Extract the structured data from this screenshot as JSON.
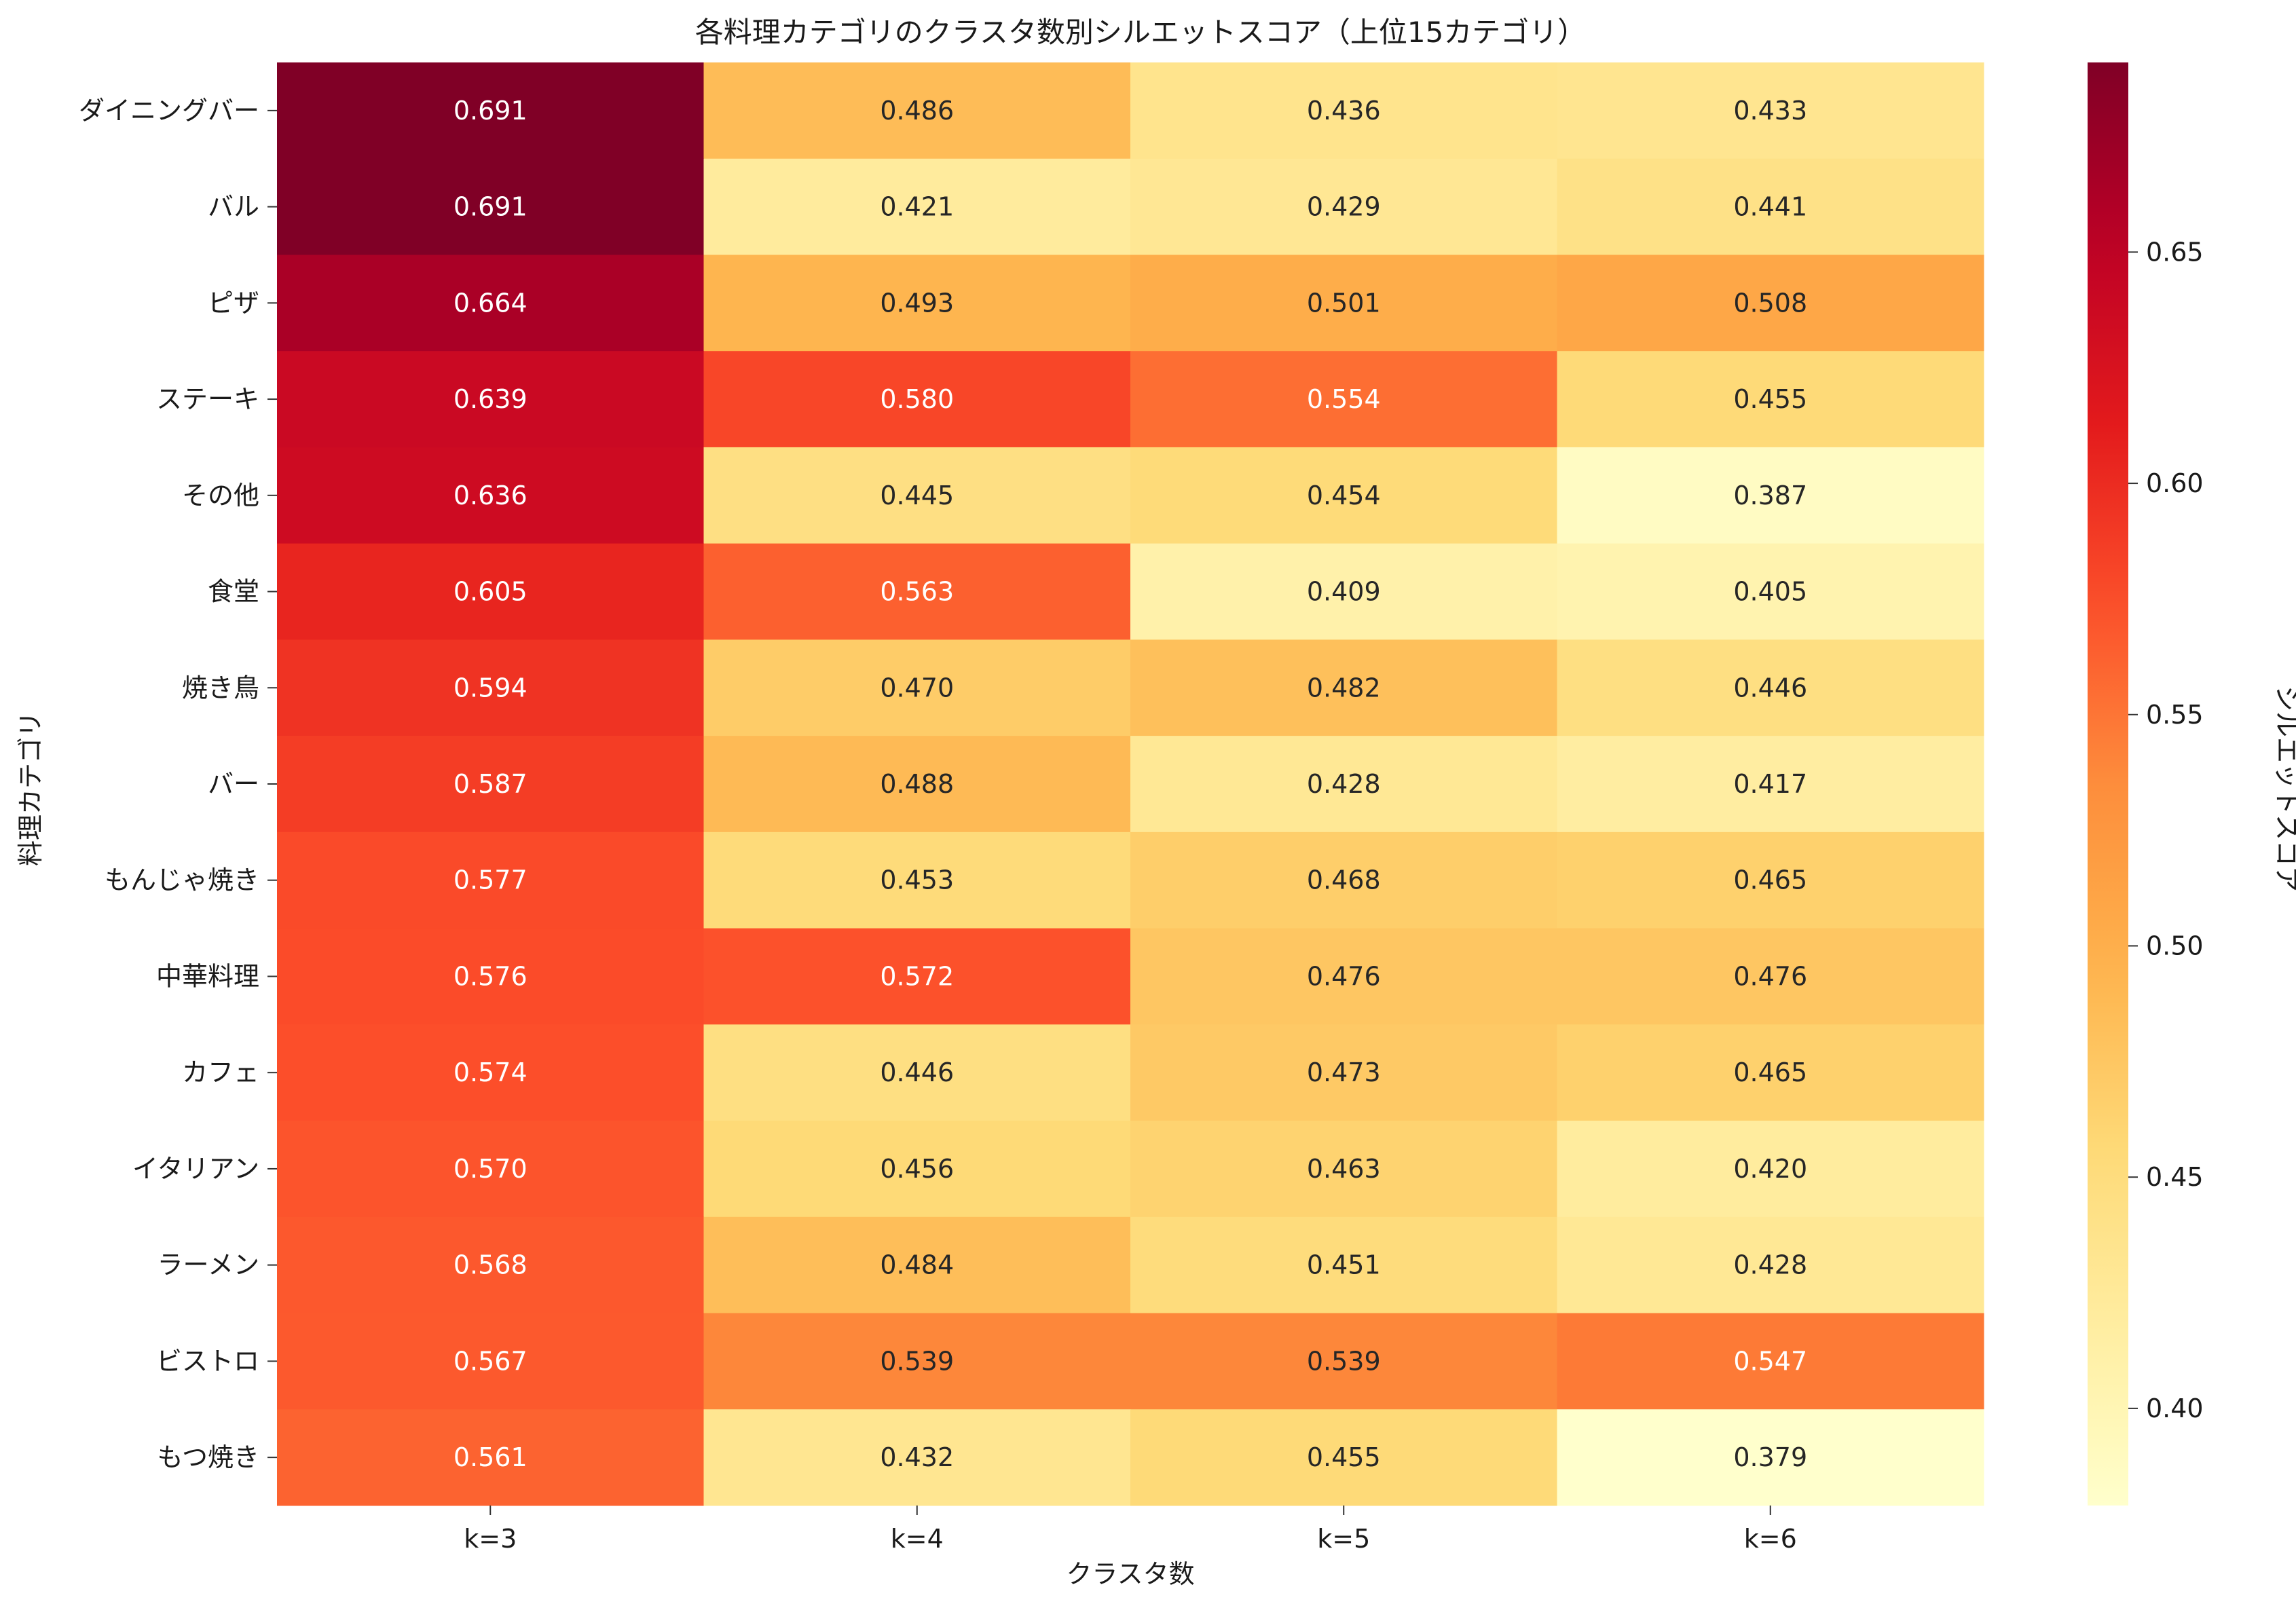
{
  "chart_data": {
    "type": "heatmap",
    "title": "各料理カテゴリのクラスタ数別シルエットスコア（上位15カテゴリ）",
    "xlabel": "クラスタ数",
    "ylabel": "料理カテゴリ",
    "colorbar_label": "シルエットスコア",
    "colormap": "YlOrRd",
    "x_categories": [
      "k=3",
      "k=4",
      "k=5",
      "k=6"
    ],
    "y_categories": [
      "ダイニングバー",
      "バル",
      "ピザ",
      "ステーキ",
      "その他",
      "食堂",
      "焼き鳥",
      "バー",
      "もんじゃ焼き",
      "中華料理",
      "カフェ",
      "イタリアン",
      "ラーメン",
      "ビストロ",
      "もつ焼き"
    ],
    "values": [
      [
        0.691,
        0.486,
        0.436,
        0.433
      ],
      [
        0.691,
        0.421,
        0.429,
        0.441
      ],
      [
        0.664,
        0.493,
        0.501,
        0.508
      ],
      [
        0.639,
        0.58,
        0.554,
        0.455
      ],
      [
        0.636,
        0.445,
        0.454,
        0.387
      ],
      [
        0.605,
        0.563,
        0.409,
        0.405
      ],
      [
        0.594,
        0.47,
        0.482,
        0.446
      ],
      [
        0.587,
        0.488,
        0.428,
        0.417
      ],
      [
        0.577,
        0.453,
        0.468,
        0.465
      ],
      [
        0.576,
        0.572,
        0.476,
        0.476
      ],
      [
        0.574,
        0.446,
        0.473,
        0.465
      ],
      [
        0.57,
        0.456,
        0.463,
        0.42
      ],
      [
        0.568,
        0.484,
        0.451,
        0.428
      ],
      [
        0.567,
        0.539,
        0.539,
        0.547
      ],
      [
        0.561,
        0.432,
        0.455,
        0.379
      ]
    ],
    "vmin": 0.379,
    "vmax": 0.691,
    "colorbar_ticks": [
      "0.40",
      "0.45",
      "0.50",
      "0.55",
      "0.60",
      "0.65"
    ]
  }
}
